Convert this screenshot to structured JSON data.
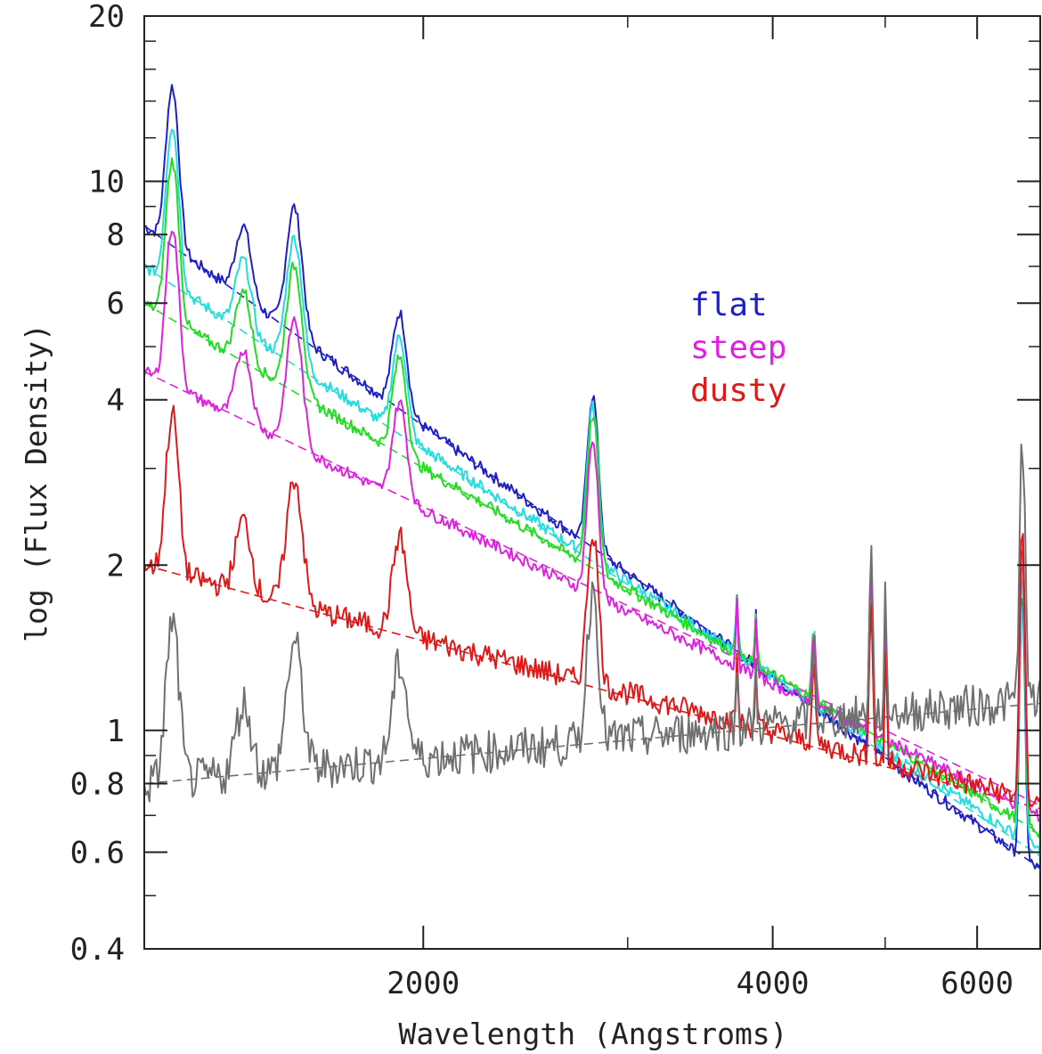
{
  "chart_data": {
    "type": "line",
    "xlabel": "Wavelength (Angstroms)",
    "ylabel": "log (Flux Density)",
    "xscale": "log",
    "yscale": "log",
    "xlim": [
      1150,
      6800
    ],
    "ylim": [
      0.4,
      20
    ],
    "x_ticks": [
      {
        "value": 2000,
        "label": "2000"
      },
      {
        "value": 4000,
        "label": "4000"
      },
      {
        "value": 6000,
        "label": "6000"
      }
    ],
    "y_ticks": [
      {
        "value": 0.4,
        "label": "0.4"
      },
      {
        "value": 0.6,
        "label": "0.6"
      },
      {
        "value": 0.8,
        "label": "0.8"
      },
      {
        "value": 1,
        "label": "1"
      },
      {
        "value": 2,
        "label": "2"
      },
      {
        "value": 4,
        "label": "4"
      },
      {
        "value": 6,
        "label": "6"
      },
      {
        "value": 8,
        "label": "8"
      },
      {
        "value": 10,
        "label": "10"
      },
      {
        "value": 20,
        "label": "20"
      }
    ],
    "legend": [
      {
        "text": "flat",
        "color": "#1f1fc8"
      },
      {
        "text": "steep",
        "color": "#e020e0"
      },
      {
        "text": "dusty",
        "color": "#e01818"
      }
    ],
    "legend_position": "top-right",
    "series": [
      {
        "color": "#1f1fc8",
        "norm": 8.3,
        "slope": -1.52
      },
      {
        "color": "#22dddd",
        "norm": 7.0,
        "slope": -1.38
      },
      {
        "color": "#22dd22",
        "norm": 6.0,
        "slope": -1.25
      },
      {
        "color": "#e020e0",
        "norm": 4.5,
        "slope": -1.05
      },
      {
        "color": "#e01818",
        "norm": 2.0,
        "slope": -0.56
      },
      {
        "color": "#707070",
        "norm": 0.8,
        "slope": 0.2
      }
    ],
    "power_law_fits": [
      {
        "color": "#1f1fc8",
        "x": [
          1150,
          6800
        ],
        "y": [
          8.3,
          0.56
        ]
      },
      {
        "color": "#22dddd",
        "x": [
          1150,
          6800
        ],
        "y": [
          7.0,
          0.59
        ]
      },
      {
        "color": "#22dd22",
        "x": [
          1150,
          6800
        ],
        "y": [
          6.0,
          0.65
        ]
      },
      {
        "color": "#e020e0",
        "x": [
          1150,
          6800
        ],
        "y": [
          4.5,
          0.73
        ]
      },
      {
        "color": "#e01818",
        "x": [
          1150,
          6800
        ],
        "y": [
          2.0,
          0.72
        ]
      },
      {
        "color": "#707070",
        "x": [
          1150,
          6800
        ],
        "y": [
          0.8,
          1.12
        ]
      }
    ],
    "emission_lines": [
      {
        "x": 1216,
        "amp": 0.95,
        "w": 14
      },
      {
        "x": 1400,
        "amp": 0.35,
        "w": 20
      },
      {
        "x": 1549,
        "amp": 0.7,
        "w": 22
      },
      {
        "x": 1909,
        "amp": 0.5,
        "w": 25
      },
      {
        "x": 2800,
        "amp": 0.9,
        "w": 28
      },
      {
        "x": 3727,
        "amp": 0.3,
        "w": 8
      },
      {
        "x": 3869,
        "amp": 0.25,
        "w": 8
      },
      {
        "x": 4340,
        "amp": 0.35,
        "w": 15
      },
      {
        "x": 4861,
        "amp": 1.0,
        "w": 15
      },
      {
        "x": 5007,
        "amp": 1.3,
        "w": 6
      },
      {
        "x": 6563,
        "amp": 2.0,
        "w": 30
      }
    ]
  }
}
